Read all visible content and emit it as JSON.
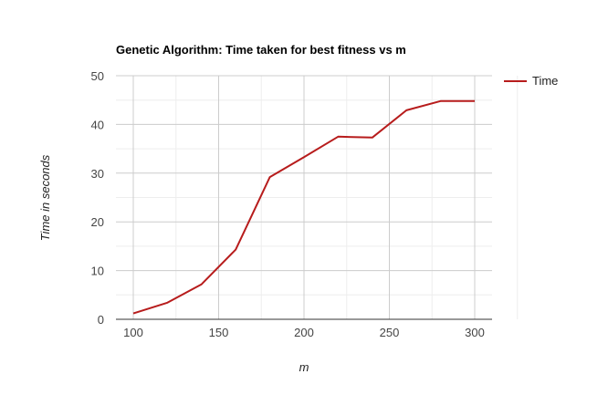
{
  "chart_data": {
    "type": "line",
    "title": "Genetic Algorithm: Time taken for best fitness vs m",
    "xlabel": "m",
    "ylabel": "Time in seconds",
    "xlim": [
      100,
      300
    ],
    "ylim": [
      0,
      50
    ],
    "xticks": [
      100,
      150,
      200,
      250,
      300
    ],
    "yticks": [
      0,
      10,
      20,
      30,
      40,
      50
    ],
    "grid": true,
    "legend": "right",
    "series": [
      {
        "name": "Time",
        "color": "#b71c1c",
        "x": [
          100,
          120,
          140,
          160,
          180,
          200,
          220,
          240,
          260,
          280,
          300
        ],
        "y": [
          1.2,
          3.4,
          7.2,
          14.3,
          29.2,
          33.3,
          37.5,
          37.3,
          42.9,
          44.8,
          44.8
        ]
      }
    ]
  }
}
